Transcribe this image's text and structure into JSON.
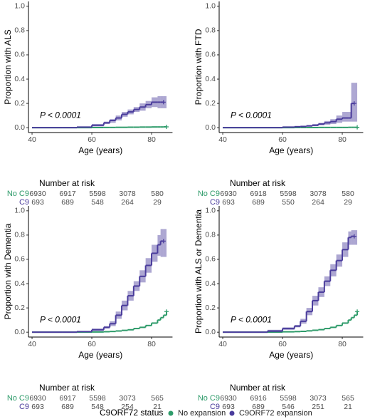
{
  "chart_data": [
    {
      "type": "line",
      "ylabel": "Proportion with ALS",
      "xlabel": "Age (years)",
      "annotation": "P < 0.0001",
      "x": [
        40,
        50,
        55,
        60,
        64,
        66,
        68,
        70,
        72,
        74,
        76,
        78,
        80,
        82,
        83,
        84,
        85
      ],
      "series": [
        {
          "name": "No expansion",
          "color": "#2e9b6a",
          "values": [
            0,
            0,
            0,
            0.001,
            0.002,
            0.002,
            0.003,
            0.003,
            0.004,
            0.004,
            0.005,
            0.005,
            0.006,
            0.006,
            0.006,
            0.007,
            0.007
          ]
        },
        {
          "name": "C9ORF72 expansion",
          "color": "#4a3c9c",
          "values": [
            0,
            0,
            0.005,
            0.02,
            0.04,
            0.06,
            0.08,
            0.11,
            0.13,
            0.15,
            0.17,
            0.19,
            0.21,
            0.21,
            0.21,
            0.21,
            null
          ],
          "lower": [
            0,
            0,
            0,
            0.01,
            0.03,
            0.04,
            0.06,
            0.09,
            0.11,
            0.13,
            0.14,
            0.16,
            0.17,
            0.16,
            0.16,
            0.16,
            null
          ],
          "upper": [
            0,
            0,
            0.01,
            0.03,
            0.05,
            0.07,
            0.1,
            0.13,
            0.15,
            0.17,
            0.2,
            0.22,
            0.25,
            0.26,
            0.26,
            0.26,
            null
          ]
        }
      ],
      "xlim": [
        38.8,
        87
      ],
      "xticks": [
        40,
        60,
        80
      ],
      "ylim": [
        -0.04,
        1.04
      ],
      "yticks": [
        {
          "value": 0,
          "label": "0.0"
        },
        0.2,
        0.4,
        0.6,
        0.8,
        {
          "value": 1,
          "label": "1.0"
        }
      ],
      "risk_table": {
        "title": "Number at risk",
        "times": [
          40,
          50,
          60,
          70,
          80
        ],
        "rows": [
          {
            "label": "No C9",
            "values": [
              6930,
              6917,
              5598,
              3078,
              580
            ]
          },
          {
            "label": "C9",
            "values": [
              693,
              689,
              548,
              264,
              29
            ]
          }
        ]
      }
    },
    {
      "type": "line",
      "ylabel": "Proportion with FTD",
      "xlabel": "Age (years)",
      "annotation": "P < 0.0001",
      "x": [
        40,
        50,
        55,
        60,
        64,
        66,
        68,
        70,
        72,
        74,
        76,
        78,
        80,
        82,
        83,
        84,
        85
      ],
      "series": [
        {
          "name": "No expansion",
          "color": "#2e9b6a",
          "values": [
            0,
            0,
            0,
            0,
            0.001,
            0.001,
            0.001,
            0.001,
            0.002,
            0.002,
            0.002,
            0.002,
            0.002,
            0.003,
            0.003,
            0.003,
            0.003
          ]
        },
        {
          "name": "C9ORF72 expansion",
          "color": "#4a3c9c",
          "values": [
            0,
            0,
            0,
            0.005,
            0.008,
            0.01,
            0.015,
            0.02,
            0.03,
            0.04,
            0.05,
            0.07,
            0.08,
            0.08,
            0.2,
            0.2,
            null
          ],
          "lower": [
            0,
            0,
            0,
            0,
            0.003,
            0.005,
            0.008,
            0.012,
            0.02,
            0.025,
            0.03,
            0.04,
            0.05,
            0.05,
            0.05,
            0.05,
            null
          ],
          "upper": [
            0,
            0,
            0,
            0.01,
            0.013,
            0.016,
            0.022,
            0.03,
            0.04,
            0.055,
            0.07,
            0.1,
            0.13,
            0.13,
            0.37,
            0.37,
            null
          ]
        }
      ],
      "xlim": [
        38.8,
        87
      ],
      "xticks": [
        40,
        60,
        80
      ],
      "ylim": [
        -0.04,
        1.04
      ],
      "yticks": [
        {
          "value": 0,
          "label": "0.0"
        },
        0.2,
        0.4,
        0.6,
        0.8,
        {
          "value": 1,
          "label": "1.0"
        }
      ],
      "risk_table": {
        "title": "Number at risk",
        "times": [
          40,
          50,
          60,
          70,
          80
        ],
        "rows": [
          {
            "label": "No C9",
            "values": [
              6930,
              6918,
              5598,
              3078,
              580
            ]
          },
          {
            "label": "C9",
            "values": [
              693,
              689,
              550,
              264,
              29
            ]
          }
        ]
      }
    },
    {
      "type": "line",
      "ylabel": "Proportion with Dementia",
      "xlabel": "Age (years)",
      "annotation": "P < 0.0001",
      "x": [
        40,
        50,
        55,
        60,
        64,
        66,
        68,
        70,
        72,
        74,
        76,
        78,
        80,
        82,
        83,
        84,
        85
      ],
      "series": [
        {
          "name": "No expansion",
          "color": "#2e9b6a",
          "values": [
            0,
            0,
            0,
            0.002,
            0.004,
            0.006,
            0.01,
            0.015,
            0.02,
            0.03,
            0.04,
            0.055,
            0.075,
            0.1,
            0.12,
            0.14,
            0.17
          ]
        },
        {
          "name": "C9ORF72 expansion",
          "color": "#4a3c9c",
          "values": [
            0,
            0,
            0.005,
            0.02,
            0.04,
            0.07,
            0.14,
            0.22,
            0.3,
            0.38,
            0.46,
            0.55,
            0.65,
            0.72,
            0.75,
            0.75,
            null
          ],
          "lower": [
            0,
            0,
            0,
            0.01,
            0.03,
            0.05,
            0.11,
            0.18,
            0.26,
            0.34,
            0.41,
            0.49,
            0.58,
            0.63,
            0.62,
            0.62,
            null
          ],
          "upper": [
            0,
            0,
            0.01,
            0.03,
            0.05,
            0.09,
            0.17,
            0.26,
            0.34,
            0.42,
            0.51,
            0.61,
            0.72,
            0.8,
            0.85,
            0.85,
            null
          ]
        }
      ],
      "xlim": [
        38.8,
        87
      ],
      "xticks": [
        40,
        60,
        80
      ],
      "ylim": [
        -0.04,
        1.04
      ],
      "yticks": [
        {
          "value": 0,
          "label": "0.0"
        },
        0.2,
        0.4,
        0.6,
        0.8,
        {
          "value": 1,
          "label": "1.0"
        }
      ],
      "risk_table": {
        "title": "Number at risk",
        "times": [
          40,
          50,
          60,
          70,
          80
        ],
        "rows": [
          {
            "label": "No C9",
            "values": [
              6930,
              6917,
              5598,
              3073,
              565
            ]
          },
          {
            "label": "C9",
            "values": [
              693,
              689,
              548,
              254,
              21
            ]
          }
        ]
      }
    },
    {
      "type": "line",
      "ylabel": "Proportion with ALS or Dementia",
      "xlabel": "Age (years)",
      "annotation": "P < 0.0001",
      "x": [
        40,
        50,
        55,
        60,
        64,
        66,
        68,
        70,
        72,
        74,
        76,
        78,
        80,
        82,
        83,
        84,
        85
      ],
      "series": [
        {
          "name": "No expansion",
          "color": "#2e9b6a",
          "values": [
            0,
            0,
            0,
            0.003,
            0.005,
            0.007,
            0.011,
            0.016,
            0.021,
            0.03,
            0.04,
            0.055,
            0.075,
            0.1,
            0.12,
            0.14,
            0.17
          ]
        },
        {
          "name": "C9ORF72 expansion",
          "color": "#4a3c9c",
          "values": [
            0,
            0,
            0.01,
            0.03,
            0.05,
            0.09,
            0.17,
            0.26,
            0.33,
            0.42,
            0.51,
            0.59,
            0.68,
            0.78,
            0.79,
            0.79,
            null
          ],
          "lower": [
            0,
            0,
            0,
            0.02,
            0.04,
            0.07,
            0.14,
            0.22,
            0.29,
            0.38,
            0.46,
            0.54,
            0.62,
            0.72,
            0.72,
            0.72,
            null
          ],
          "upper": [
            0,
            0,
            0.02,
            0.04,
            0.06,
            0.11,
            0.2,
            0.3,
            0.37,
            0.46,
            0.56,
            0.64,
            0.74,
            0.83,
            0.84,
            0.84,
            null
          ]
        }
      ],
      "xlim": [
        38.8,
        87
      ],
      "xticks": [
        40,
        60,
        80
      ],
      "ylim": [
        -0.04,
        1.04
      ],
      "yticks": [
        {
          "value": 0,
          "label": "0.0"
        },
        0.2,
        0.4,
        0.6,
        0.8,
        {
          "value": 1,
          "label": "1.0"
        }
      ],
      "risk_table": {
        "title": "Number at risk",
        "times": [
          40,
          50,
          60,
          70,
          80
        ],
        "rows": [
          {
            "label": "No C9",
            "values": [
              6930,
              6916,
              5598,
              3073,
              565
            ]
          },
          {
            "label": "C9",
            "values": [
              693,
              689,
              546,
              251,
              21
            ]
          }
        ]
      }
    }
  ],
  "legend_title": "C9ORF72 status"
}
